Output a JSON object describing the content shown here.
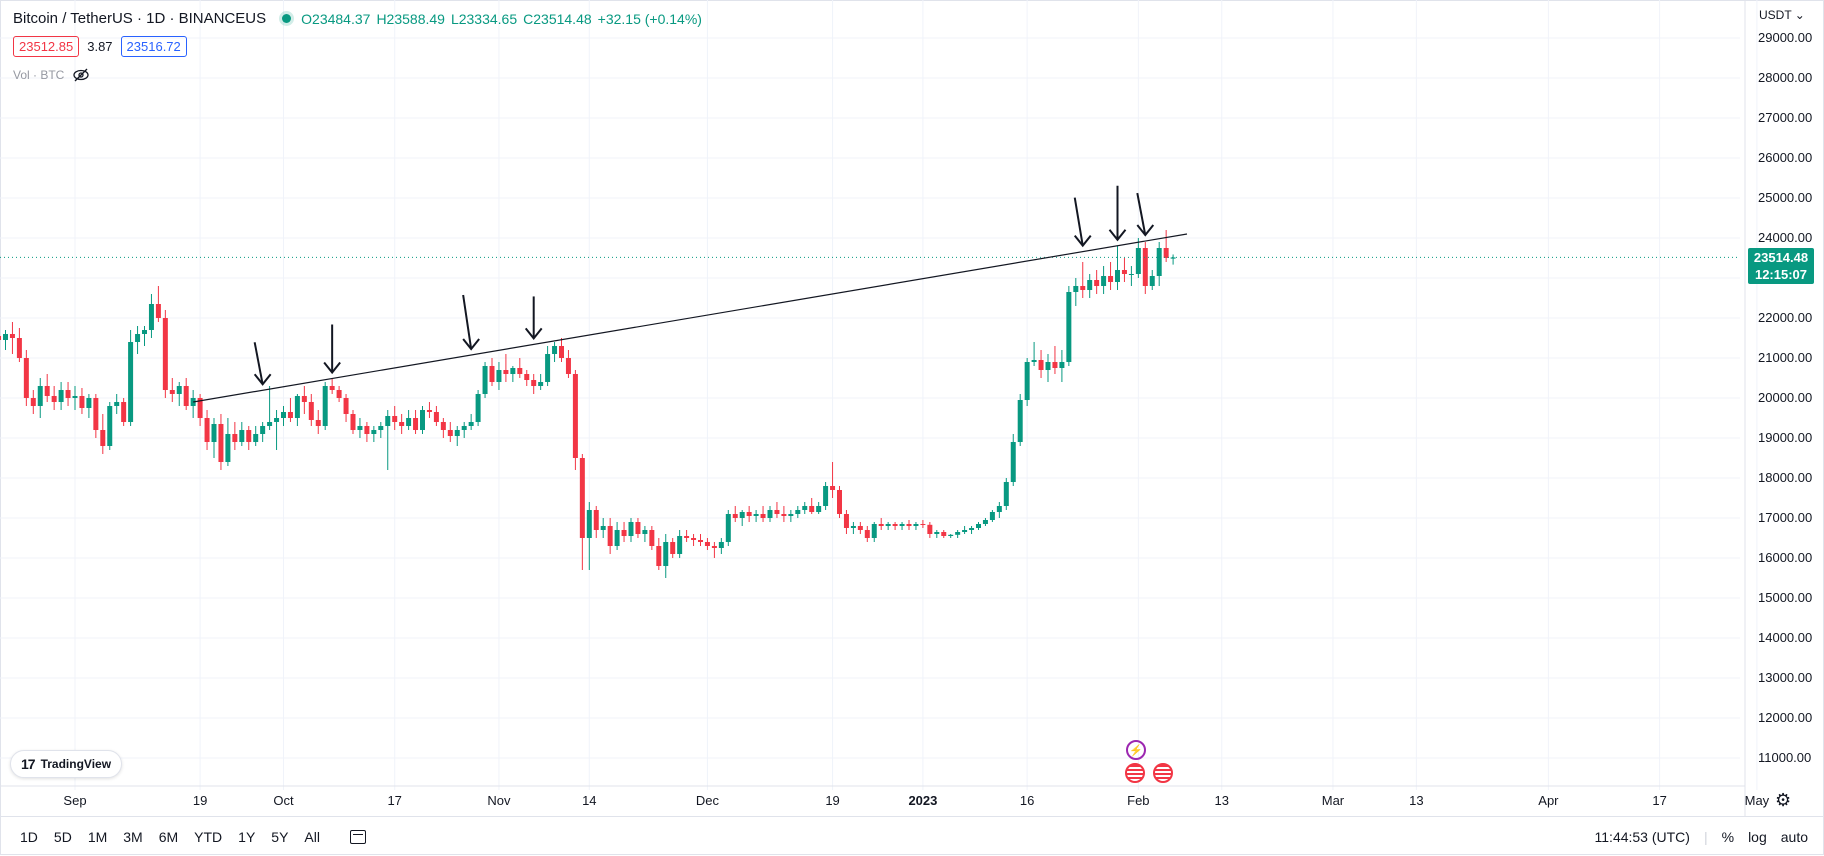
{
  "legend": {
    "symbol": "Bitcoin / TetherUS · 1D · BINANCEUS",
    "open": "O23484.37",
    "high": "H23588.49",
    "low": "L23334.65",
    "close": "C23514.48",
    "change": "+32.15 (+0.14%)",
    "bid": "23512.85",
    "spread": "3.87",
    "ask": "23516.72",
    "volume_label": "Vol · BTC",
    "colors": {
      "up": "#089981",
      "down": "#f23645",
      "ask": "#2962ff"
    }
  },
  "price_axis": {
    "currency": "USDT",
    "last_price": "23514.48",
    "countdown": "12:15:07"
  },
  "brand": {
    "logo_mark": "17",
    "name": "TradingView"
  },
  "bottom_bar": {
    "ranges": [
      "1D",
      "5D",
      "1M",
      "3M",
      "6M",
      "YTD",
      "1Y",
      "5Y",
      "All"
    ],
    "clock": "11:44:53 (UTC)",
    "percent": "%",
    "log": "log",
    "auto": "auto"
  },
  "chart_data": {
    "type": "candlestick",
    "title": "",
    "xlabel": "",
    "ylabel": "",
    "ylim": [
      10500,
      29500
    ],
    "y_ticks": [
      11000,
      12000,
      13000,
      14000,
      15000,
      16000,
      17000,
      18000,
      19000,
      20000,
      21000,
      22000,
      23000,
      24000,
      25000,
      26000,
      27000,
      28000,
      29000
    ],
    "x_ticks": [
      {
        "label": "Sep",
        "date": "2022-09-01"
      },
      {
        "label": "19",
        "date": "2022-09-19"
      },
      {
        "label": "Oct",
        "date": "2022-10-01"
      },
      {
        "label": "17",
        "date": "2022-10-17"
      },
      {
        "label": "Nov",
        "date": "2022-11-01"
      },
      {
        "label": "14",
        "date": "2022-11-14"
      },
      {
        "label": "Dec",
        "date": "2022-12-01"
      },
      {
        "label": "19",
        "date": "2022-12-19"
      },
      {
        "label": "2023",
        "date": "2023-01-01",
        "bold": true
      },
      {
        "label": "16",
        "date": "2023-01-16"
      },
      {
        "label": "Feb",
        "date": "2023-02-01"
      },
      {
        "label": "13",
        "date": "2023-02-13"
      },
      {
        "label": "Mar",
        "date": "2023-03-01"
      },
      {
        "label": "13",
        "date": "2023-03-13"
      },
      {
        "label": "Apr",
        "date": "2023-04-01"
      },
      {
        "label": "17",
        "date": "2023-04-17"
      },
      {
        "label": "May",
        "date": "2023-05-01"
      }
    ],
    "first_date": "2022-08-20",
    "last_date": "2023-02-04",
    "candles": [
      [
        21500,
        21700,
        21300,
        21550
      ],
      [
        21550,
        21800,
        21200,
        21450
      ],
      [
        21450,
        21700,
        21200,
        21600
      ],
      [
        21600,
        21900,
        21100,
        21500
      ],
      [
        21500,
        21750,
        20900,
        21000
      ],
      [
        21000,
        21200,
        19800,
        20000
      ],
      [
        20000,
        20200,
        19600,
        19800
      ],
      [
        19800,
        20500,
        19500,
        20300
      ],
      [
        20300,
        20600,
        19900,
        20050
      ],
      [
        20050,
        20300,
        19700,
        19900
      ],
      [
        19900,
        20400,
        19700,
        20200
      ],
      [
        20200,
        20400,
        19800,
        20000
      ],
      [
        20000,
        20300,
        19700,
        20050
      ],
      [
        20050,
        20250,
        19600,
        19750
      ],
      [
        19750,
        20100,
        19500,
        20000
      ],
      [
        20000,
        20100,
        19000,
        19200
      ],
      [
        19200,
        19600,
        18600,
        18800
      ],
      [
        18800,
        19900,
        18700,
        19800
      ],
      [
        19800,
        20100,
        19600,
        19900
      ],
      [
        19900,
        20000,
        19300,
        19400
      ],
      [
        19400,
        21700,
        19300,
        21400
      ],
      [
        21400,
        21800,
        21100,
        21600
      ],
      [
        21600,
        21800,
        21300,
        21700
      ],
      [
        21700,
        22600,
        21500,
        22350
      ],
      [
        22350,
        22800,
        21900,
        22000
      ],
      [
        22000,
        22200,
        20000,
        20200
      ],
      [
        20200,
        20500,
        19900,
        20100
      ],
      [
        20100,
        20400,
        19800,
        20300
      ],
      [
        20300,
        20500,
        19700,
        19800
      ],
      [
        19800,
        20200,
        19500,
        20000
      ],
      [
        20000,
        20100,
        19300,
        19500
      ],
      [
        19500,
        19700,
        18700,
        18900
      ],
      [
        18900,
        19500,
        18500,
        19350
      ],
      [
        19350,
        19600,
        18200,
        18400
      ],
      [
        18400,
        19500,
        18300,
        19100
      ],
      [
        19100,
        19400,
        18700,
        18900
      ],
      [
        18900,
        19400,
        18800,
        19200
      ],
      [
        19200,
        19300,
        18700,
        18900
      ],
      [
        18900,
        19300,
        18800,
        19100
      ],
      [
        19100,
        19400,
        18900,
        19300
      ],
      [
        19300,
        20300,
        19200,
        19400
      ],
      [
        19400,
        19700,
        18700,
        19500
      ],
      [
        19500,
        19800,
        19300,
        19650
      ],
      [
        19650,
        20000,
        19400,
        19500
      ],
      [
        19500,
        20100,
        19300,
        20050
      ],
      [
        20050,
        20300,
        19600,
        19900
      ],
      [
        19900,
        20100,
        19300,
        19450
      ],
      [
        19450,
        19700,
        19100,
        19300
      ],
      [
        19300,
        20400,
        19200,
        20300
      ],
      [
        20300,
        20500,
        20100,
        20200
      ],
      [
        20200,
        20300,
        19900,
        20000
      ],
      [
        20000,
        20100,
        19400,
        19600
      ],
      [
        19600,
        19700,
        19100,
        19200
      ],
      [
        19200,
        19500,
        19000,
        19300
      ],
      [
        19300,
        19400,
        18900,
        19100
      ],
      [
        19100,
        19300,
        18900,
        19200
      ],
      [
        19200,
        19400,
        19000,
        19300
      ],
      [
        19300,
        19700,
        18200,
        19550
      ],
      [
        19550,
        19800,
        19200,
        19400
      ],
      [
        19400,
        19600,
        19100,
        19300
      ],
      [
        19300,
        19700,
        19200,
        19500
      ],
      [
        19500,
        19700,
        19100,
        19200
      ],
      [
        19200,
        19800,
        19100,
        19700
      ],
      [
        19700,
        19900,
        19500,
        19650
      ],
      [
        19650,
        19800,
        19300,
        19400
      ],
      [
        19400,
        19500,
        19000,
        19200
      ],
      [
        19200,
        19400,
        18900,
        19050
      ],
      [
        19050,
        19300,
        18800,
        19200
      ],
      [
        19200,
        19400,
        19000,
        19300
      ],
      [
        19300,
        19600,
        19200,
        19400
      ],
      [
        19400,
        20200,
        19300,
        20100
      ],
      [
        20100,
        20900,
        20000,
        20800
      ],
      [
        20800,
        21000,
        20300,
        20400
      ],
      [
        20400,
        20900,
        20200,
        20700
      ],
      [
        20700,
        21100,
        20400,
        20600
      ],
      [
        20600,
        20800,
        20400,
        20750
      ],
      [
        20750,
        21000,
        20500,
        20600
      ],
      [
        20600,
        20700,
        20300,
        20450
      ],
      [
        20450,
        20600,
        20100,
        20300
      ],
      [
        20300,
        20600,
        20200,
        20400
      ],
      [
        20400,
        21300,
        20300,
        21100
      ],
      [
        21100,
        21400,
        20900,
        21300
      ],
      [
        21300,
        21500,
        20900,
        21000
      ],
      [
        21000,
        21200,
        20500,
        20600
      ],
      [
        20600,
        20700,
        18200,
        18500
      ],
      [
        18500,
        18600,
        15700,
        16500
      ],
      [
        16500,
        17400,
        15700,
        17200
      ],
      [
        17200,
        17300,
        16500,
        16700
      ],
      [
        16700,
        17000,
        16500,
        16800
      ],
      [
        16800,
        17000,
        16100,
        16300
      ],
      [
        16300,
        16900,
        16200,
        16700
      ],
      [
        16700,
        16900,
        16400,
        16550
      ],
      [
        16550,
        17000,
        16400,
        16900
      ],
      [
        16900,
        17000,
        16500,
        16600
      ],
      [
        16600,
        16800,
        16400,
        16700
      ],
      [
        16700,
        16800,
        16200,
        16300
      ],
      [
        16300,
        16500,
        15700,
        15800
      ],
      [
        15800,
        16600,
        15500,
        16400
      ],
      [
        16400,
        16500,
        16000,
        16100
      ],
      [
        16100,
        16700,
        16000,
        16550
      ],
      [
        16550,
        16700,
        16400,
        16500
      ],
      [
        16500,
        16600,
        16300,
        16450
      ],
      [
        16450,
        16600,
        16300,
        16400
      ],
      [
        16400,
        16500,
        16200,
        16300
      ],
      [
        16300,
        16400,
        16000,
        16250
      ],
      [
        16250,
        16500,
        16100,
        16400
      ],
      [
        16400,
        17200,
        16300,
        17100
      ],
      [
        17100,
        17300,
        16900,
        17000
      ],
      [
        17000,
        17200,
        16800,
        17150
      ],
      [
        17150,
        17300,
        16900,
        17050
      ],
      [
        17050,
        17200,
        16900,
        17100
      ],
      [
        17100,
        17300,
        16900,
        17000
      ],
      [
        17000,
        17300,
        16900,
        17200
      ],
      [
        17200,
        17400,
        17000,
        17100
      ],
      [
        17100,
        17300,
        16900,
        17050
      ],
      [
        17050,
        17200,
        16900,
        17100
      ],
      [
        17100,
        17300,
        17000,
        17200
      ],
      [
        17200,
        17400,
        17100,
        17300
      ],
      [
        17300,
        17500,
        17100,
        17150
      ],
      [
        17150,
        17400,
        17100,
        17300
      ],
      [
        17300,
        17900,
        17200,
        17800
      ],
      [
        17800,
        18400,
        17500,
        17700
      ],
      [
        17700,
        17800,
        17000,
        17100
      ],
      [
        17100,
        17200,
        16600,
        16750
      ],
      [
        16750,
        16900,
        16600,
        16800
      ],
      [
        16800,
        16900,
        16600,
        16700
      ],
      [
        16700,
        16800,
        16400,
        16500
      ],
      [
        16500,
        16900,
        16400,
        16850
      ],
      [
        16850,
        17000,
        16700,
        16800
      ],
      [
        16800,
        16900,
        16700,
        16850
      ],
      [
        16850,
        16900,
        16700,
        16800
      ],
      [
        16800,
        16900,
        16700,
        16850
      ],
      [
        16850,
        16950,
        16700,
        16800
      ],
      [
        16800,
        16900,
        16700,
        16850
      ],
      [
        16850,
        16950,
        16750,
        16830
      ],
      [
        16830,
        16900,
        16500,
        16600
      ],
      [
        16600,
        16700,
        16500,
        16650
      ],
      [
        16650,
        16700,
        16500,
        16550
      ],
      [
        16550,
        16600,
        16500,
        16580
      ],
      [
        16580,
        16700,
        16500,
        16650
      ],
      [
        16650,
        16800,
        16600,
        16700
      ],
      [
        16700,
        16800,
        16600,
        16750
      ],
      [
        16750,
        16900,
        16700,
        16850
      ],
      [
        16850,
        17000,
        16800,
        16950
      ],
      [
        16950,
        17200,
        16900,
        17150
      ],
      [
        17150,
        17400,
        17000,
        17300
      ],
      [
        17300,
        18000,
        17200,
        17900
      ],
      [
        17900,
        19100,
        17800,
        18900
      ],
      [
        18900,
        20100,
        18800,
        19950
      ],
      [
        19950,
        21000,
        19800,
        20900
      ],
      [
        20900,
        21400,
        20800,
        20950
      ],
      [
        20950,
        21200,
        20500,
        20700
      ],
      [
        20700,
        21100,
        20400,
        20900
      ],
      [
        20900,
        21300,
        20600,
        20750
      ],
      [
        20750,
        21200,
        20400,
        20900
      ],
      [
        20900,
        22800,
        20800,
        22650
      ],
      [
        22650,
        23000,
        22300,
        22800
      ],
      [
        22800,
        23400,
        22500,
        22700
      ],
      [
        22700,
        23100,
        22500,
        22950
      ],
      [
        22950,
        23200,
        22600,
        22800
      ],
      [
        22800,
        23300,
        22600,
        23050
      ],
      [
        23050,
        23400,
        22700,
        22900
      ],
      [
        22900,
        23800,
        22700,
        23200
      ],
      [
        23200,
        23500,
        22900,
        23100
      ],
      [
        23100,
        23300,
        22800,
        23100
      ],
      [
        23100,
        24000,
        23000,
        23750
      ],
      [
        23750,
        23900,
        22600,
        22800
      ],
      [
        22800,
        23200,
        22700,
        23050
      ],
      [
        23050,
        23900,
        22800,
        23750
      ],
      [
        23750,
        24200,
        23400,
        23500
      ],
      [
        23484.37,
        23588.49,
        23334.65,
        23514.48
      ]
    ],
    "trendline": {
      "from": [
        "2022-09-18",
        19900
      ],
      "to": [
        "2023-02-08",
        24100
      ]
    },
    "annotations": {
      "arrow_dates": [
        "2022-09-28",
        "2022-10-08",
        "2022-10-28",
        "2022-11-06",
        "2023-01-24",
        "2023-01-29",
        "2023-02-02"
      ],
      "last_price_line": 23514.48
    }
  }
}
